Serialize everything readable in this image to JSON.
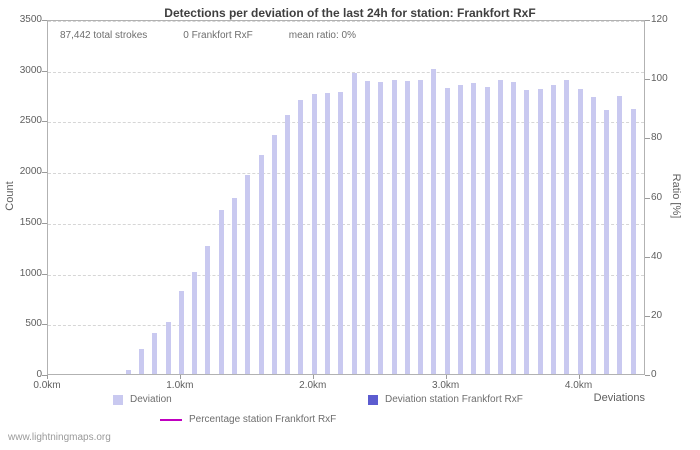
{
  "annotations": {
    "total_strokes": "87,442 total strokes",
    "station_strokes": "0 Frankfort RxF",
    "mean_ratio": "mean ratio: 0%"
  },
  "legend": {
    "deviation": "Deviation",
    "deviation_station": "Deviation station Frankfort RxF",
    "percentage_station": "Percentage station Frankfort RxF"
  },
  "watermark": "www.lightningmaps.org",
  "colors": {
    "bar": "#c9c9f0",
    "bar_station": "#5c5cd0",
    "percentage_line": "#c000c0",
    "grid": "#d6d6d6",
    "axis_text": "#5f5f5f"
  },
  "chart_data": {
    "type": "bar",
    "title": "Detections per deviation of the last 24h for station: Frankfort RxF",
    "xlabel": "Deviations",
    "ylabel_left": "Count",
    "ylabel_right": "Ratio [%]",
    "x_unit": "km",
    "xlim_km": [
      0,
      4.5
    ],
    "ylim_left": [
      0,
      3500
    ],
    "ylim_right": [
      0,
      120
    ],
    "grid": "horizontal dashed",
    "legend_position": "bottom",
    "left_ticks": [
      0,
      500,
      1000,
      1500,
      2000,
      2500,
      3000,
      3500
    ],
    "right_ticks": [
      0,
      20,
      40,
      60,
      80,
      100,
      120
    ],
    "x_tick_km": [
      0,
      1,
      2,
      3,
      4
    ],
    "x_tick_labels": [
      "0.0km",
      "1.0km",
      "2.0km",
      "3.0km",
      "4.0km"
    ],
    "bar_km": [
      0.6,
      0.7,
      0.8,
      0.9,
      1.0,
      1.1,
      1.2,
      1.3,
      1.4,
      1.5,
      1.6,
      1.7,
      1.8,
      1.9,
      2.0,
      2.1,
      2.2,
      2.3,
      2.4,
      2.5,
      2.6,
      2.7,
      2.8,
      2.9,
      3.0,
      3.1,
      3.2,
      3.3,
      3.4,
      3.5,
      3.6,
      3.7,
      3.8,
      3.9,
      4.0,
      4.1,
      4.2,
      4.3,
      4.4
    ],
    "bar_counts": [
      40,
      250,
      400,
      510,
      820,
      1010,
      1260,
      1620,
      1740,
      1960,
      2160,
      2360,
      2550,
      2700,
      2760,
      2770,
      2780,
      2970,
      2890,
      2880,
      2900,
      2890,
      2900,
      3010,
      2820,
      2850,
      2870,
      2830,
      2900,
      2880,
      2800,
      2810,
      2850,
      2900,
      2810,
      2730,
      2600,
      2740,
      2610
    ],
    "series": [
      {
        "name": "Deviation",
        "type": "bar",
        "note": "values in bar_counts"
      },
      {
        "name": "Deviation station Frankfort RxF",
        "type": "bar",
        "total": 0,
        "all_values_zero": true
      },
      {
        "name": "Percentage station Frankfort RxF",
        "type": "line",
        "mean_percent": 0,
        "all_values_zero": true
      }
    ]
  }
}
